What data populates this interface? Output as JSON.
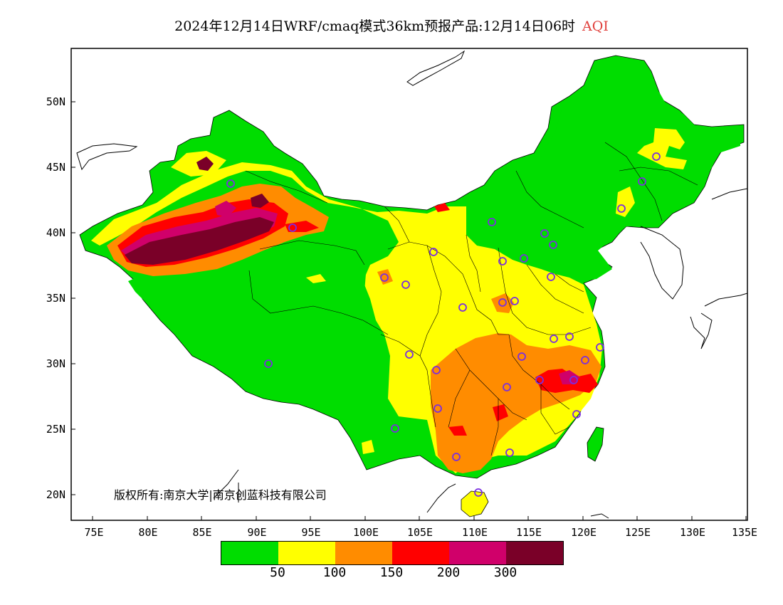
{
  "title": {
    "main": "2024年12月14日WRF/cmaq模式36km预报产品:12月14日06时",
    "variable": "AQI"
  },
  "colors": {
    "frame": "#000000",
    "aqi_title": "#e0403c",
    "green": "#00dd00",
    "yellow": "#ffff00",
    "orange": "#ff8c00",
    "red": "#ff0000",
    "magenta": "#d0006a",
    "maroon": "#7a0028",
    "station_marker": "#7a2ee0"
  },
  "axes": {
    "x_labels": [
      "75E",
      "80E",
      "85E",
      "90E",
      "95E",
      "100E",
      "105E",
      "110E",
      "115E",
      "120E",
      "125E",
      "130E",
      "135E"
    ],
    "y_labels": [
      "20N",
      "25N",
      "30N",
      "35N",
      "40N",
      "45N",
      "50N"
    ]
  },
  "copyright": "版权所有:南京大学|南京创蓝科技有限公司",
  "legend": {
    "colors": [
      "#00dd00",
      "#ffff00",
      "#ff8c00",
      "#ff0000",
      "#d0006a",
      "#7a0028"
    ],
    "labels": [
      "50",
      "100",
      "150",
      "200",
      "300"
    ]
  }
}
